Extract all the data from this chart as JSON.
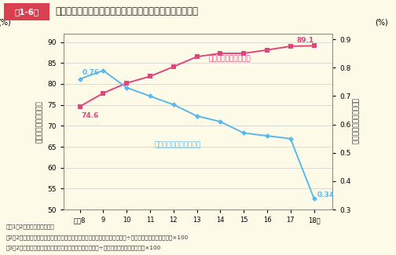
{
  "title": "第1-6図  シートベルト着用者率及び致死率（自動車乗車中）の推移",
  "title_box_text": "第1-6図",
  "title_main": "シートベルト着用者率及び致死率（自動車乗車中）の推移",
  "years": [
    8,
    9,
    10,
    11,
    12,
    13,
    14,
    15,
    16,
    17,
    18
  ],
  "year_labels": [
    "平成8",
    "9",
    "10",
    "11",
    "12",
    "13",
    "14",
    "15",
    "16",
    "17",
    "18年"
  ],
  "belt_rate": [
    74.6,
    77.8,
    80.2,
    81.8,
    84.1,
    86.5,
    87.3,
    87.3,
    88.1,
    89.0,
    89.1
  ],
  "fatality_rate": [
    0.76,
    0.79,
    0.73,
    0.7,
    0.67,
    0.63,
    0.61,
    0.57,
    0.56,
    0.55,
    0.34
  ],
  "belt_color": "#E0457B",
  "fatality_color": "#5BB8E8",
  "background_color": "#FDFAE8",
  "notes_bg": "#FFFFFF",
  "left_ylabel": "シートベルト着用者率",
  "right_ylabel": "致死率（自動車乗車中）",
  "left_yunit": "(%)",
  "right_yunit": "(%)",
  "left_ylim": [
    50,
    92
  ],
  "left_yticks": [
    50,
    55,
    60,
    65,
    70,
    75,
    80,
    85,
    90
  ],
  "right_ylim": [
    0.3,
    0.92
  ],
  "right_yticks": [
    0.3,
    0.4,
    0.5,
    0.6,
    0.7,
    0.8,
    0.9
  ],
  "belt_label": "シートベルト着用者率",
  "fatality_label": "致死率（自動車乗車中）",
  "belt_end_text": "89.1",
  "fatality_end_text": "0.34",
  "belt_start_text": "74.6",
  "fatality_start_text": "0.76",
  "title_box_color": "#D94050",
  "note_lines": [
    "注、1、2警察庁資料による。",
    "、2、2シートベルト着用者率＝シートベルト着用死倂者数（自動車乗車中）÷死倂者数（自動車乗車中）×100",
    "、3、2致死率（自動車乗車中）＝死者数（自動車乗車中）÷死倂者数（自動車乗車中）×100"
  ]
}
